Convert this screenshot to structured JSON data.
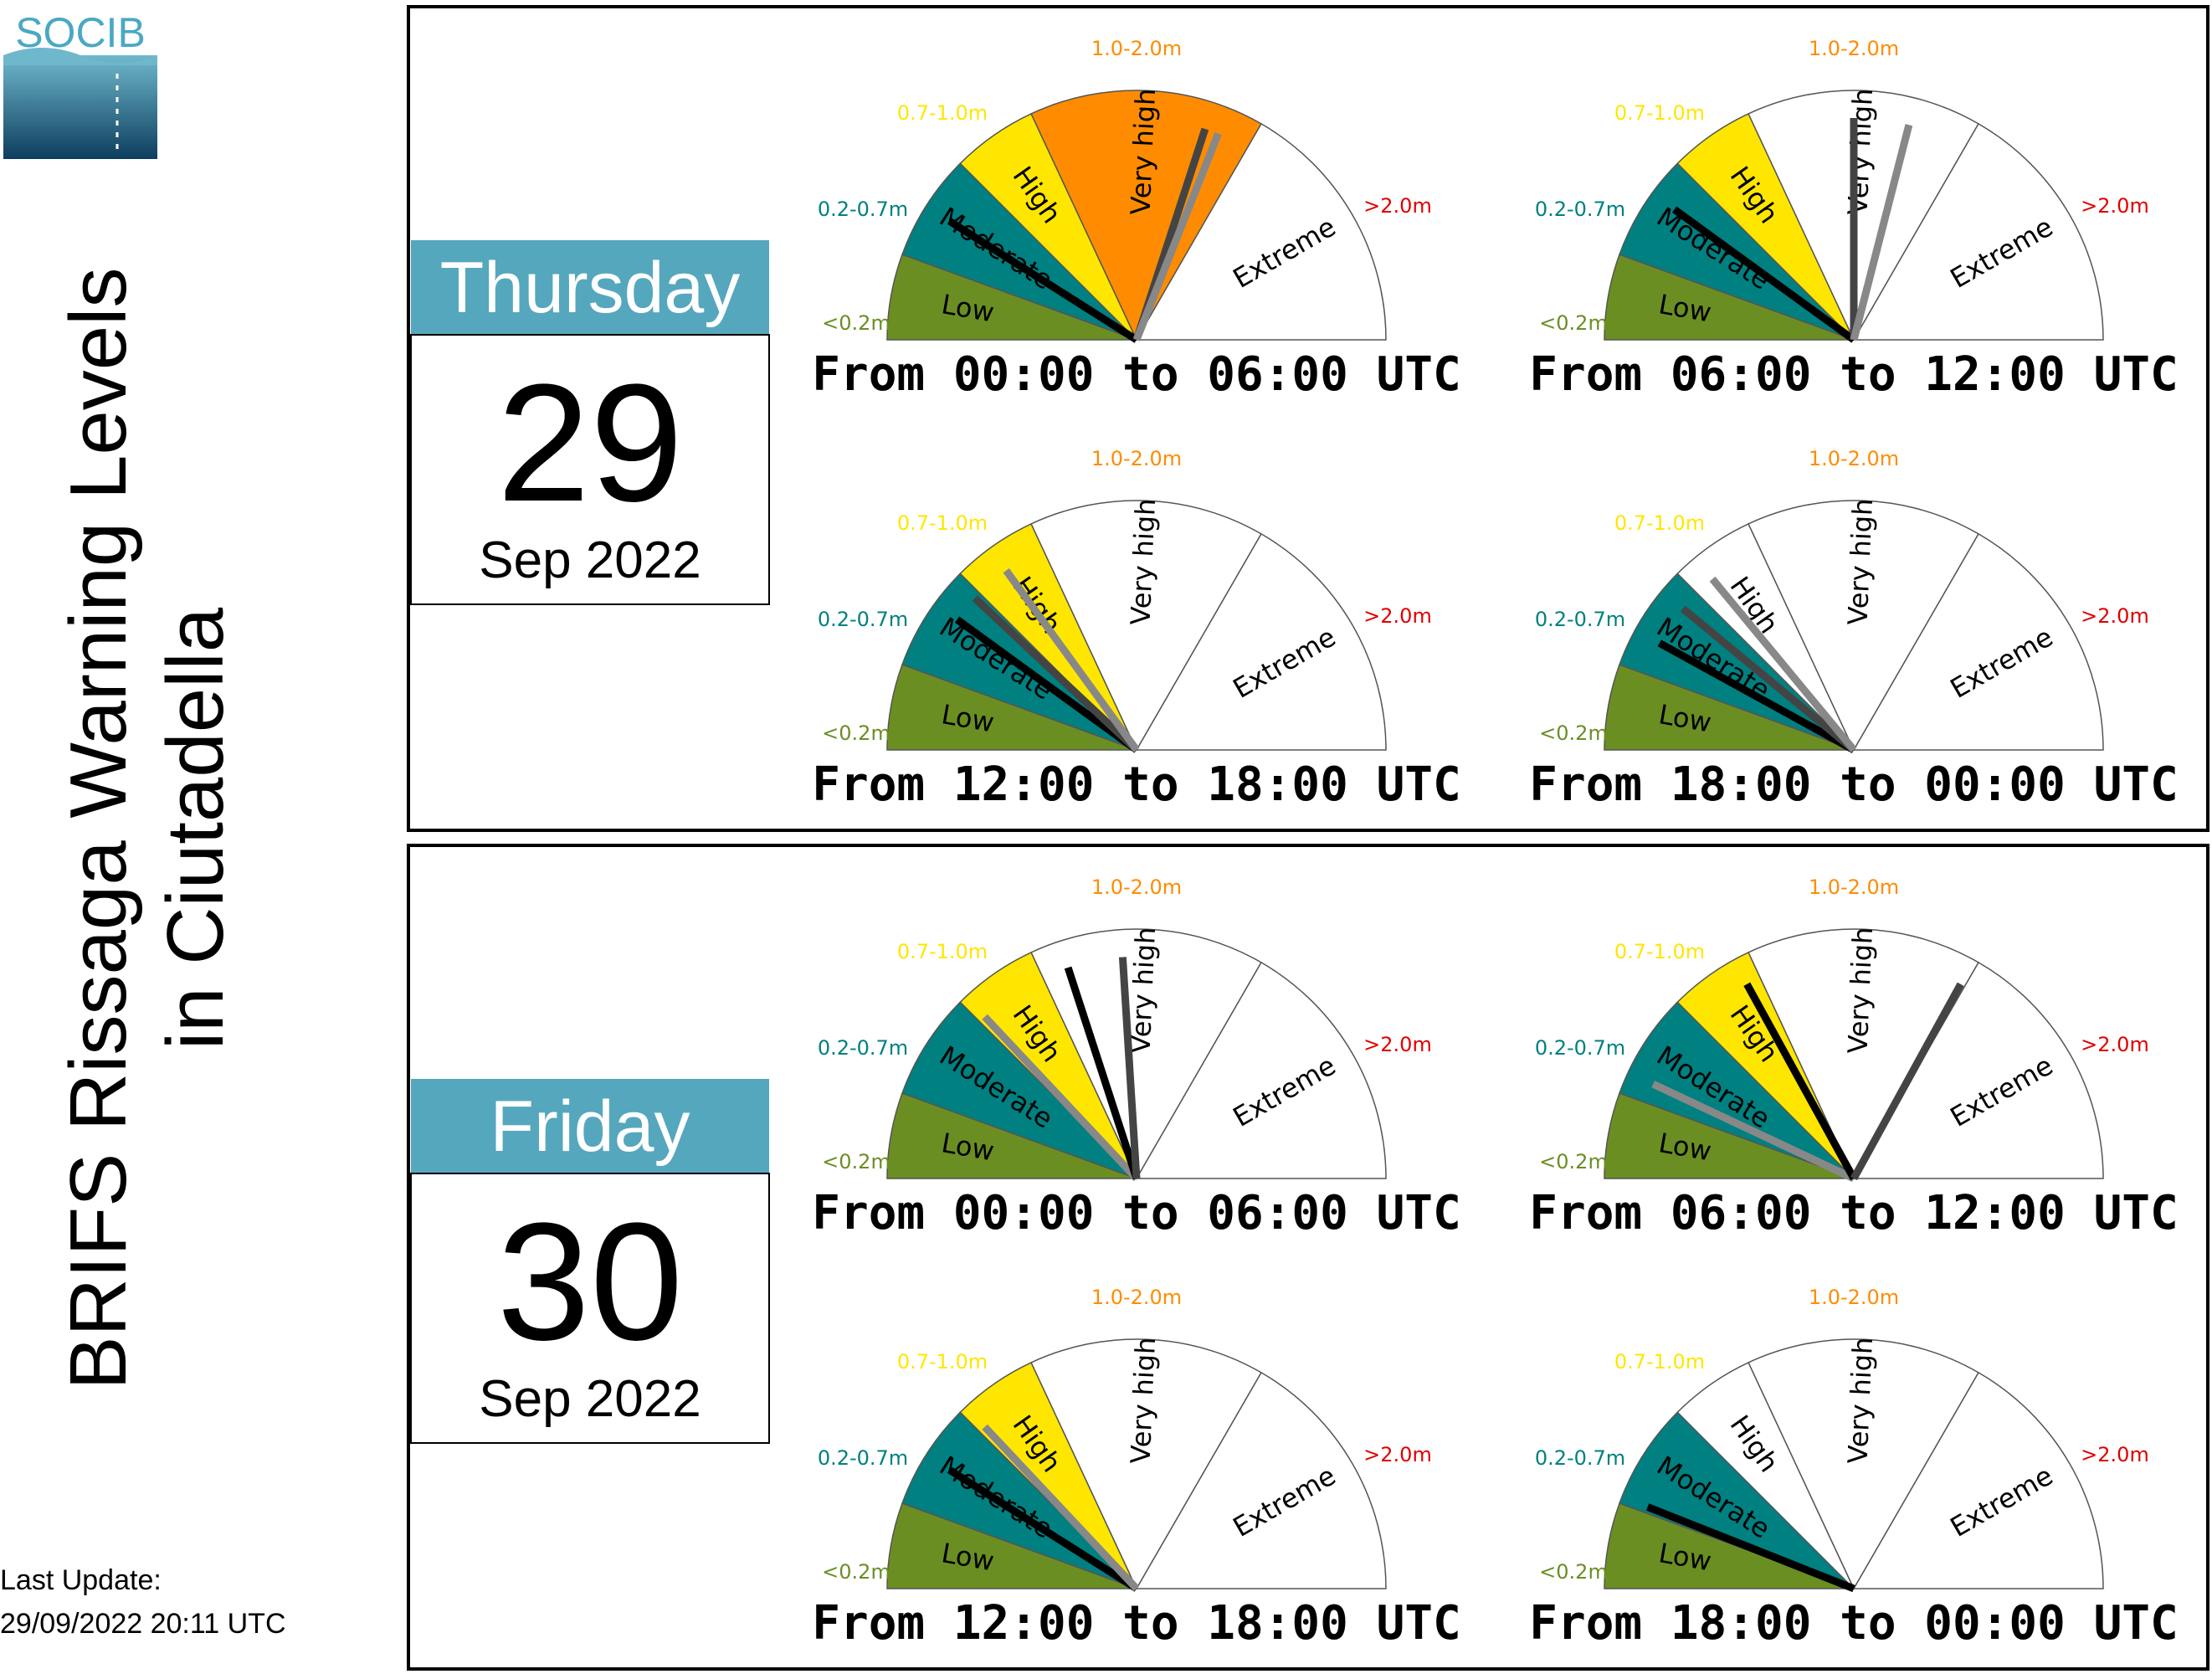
{
  "logo": {
    "text": "SOCIB"
  },
  "title": {
    "line1": "BRIFS Rissaga Warning Levels",
    "line2": "in Ciutadella"
  },
  "last_update": {
    "label": "Last Update:",
    "value": "29/09/2022 20:11 UTC"
  },
  "colors": {
    "low": "#6b8e23",
    "moderate": "#008080",
    "high": "#ffe600",
    "veryhigh": "#ff8c00",
    "extreme": "#e00000",
    "header": "#55a7bd",
    "needle_mean": "#000000",
    "needle_dark": "#444444",
    "needle_light": "#888888"
  },
  "chart_data": {
    "type": "gauge",
    "category_labels": [
      "Low",
      "Moderate",
      "High",
      "Very high",
      "Extreme"
    ],
    "threshold_labels": [
      "<0.2m",
      "0.2-0.7m",
      "0.7-1.0m",
      "1.0-2.0m",
      ">2.0m"
    ],
    "days": [
      {
        "weekday": "Thursday",
        "day": "29",
        "month_year": "Sep 2022",
        "periods": [
          {
            "label": "From 00:00 to 06:00 UTC",
            "fill_level": 3,
            "needles": [
              {
                "value": 0.18,
                "tone": "mean"
              },
              {
                "value": 0.6,
                "tone": "dark"
              },
              {
                "value": 0.62,
                "tone": "light"
              }
            ]
          },
          {
            "label": "From 06:00 to 12:00 UTC",
            "fill_level": 2,
            "needles": [
              {
                "value": 0.2,
                "tone": "mean"
              },
              {
                "value": 0.5,
                "tone": "dark"
              },
              {
                "value": 0.58,
                "tone": "light"
              }
            ]
          },
          {
            "label": "From 12:00 to 18:00 UTC",
            "fill_level": 2,
            "needles": [
              {
                "value": 0.2,
                "tone": "mean"
              },
              {
                "value": 0.24,
                "tone": "dark"
              },
              {
                "value": 0.3,
                "tone": "light"
              }
            ]
          },
          {
            "label": "From 18:00 to 00:00 UTC",
            "fill_level": 1,
            "needles": [
              {
                "value": 0.16,
                "tone": "mean"
              },
              {
                "value": 0.22,
                "tone": "dark"
              },
              {
                "value": 0.28,
                "tone": "light"
              }
            ]
          }
        ]
      },
      {
        "weekday": "Friday",
        "day": "30",
        "month_year": "Sep 2022",
        "periods": [
          {
            "label": "From 00:00 to 06:00 UTC",
            "fill_level": 2,
            "needles": [
              {
                "value": 0.26,
                "tone": "light"
              },
              {
                "value": 0.4,
                "tone": "mean"
              },
              {
                "value": 0.48,
                "tone": "dark"
              }
            ]
          },
          {
            "label": "From 06:00 to 12:00 UTC",
            "fill_level": 2,
            "needles": [
              {
                "value": 0.14,
                "tone": "light"
              },
              {
                "value": 0.34,
                "tone": "mean"
              },
              {
                "value": 0.66,
                "tone": "dark"
              }
            ]
          },
          {
            "label": "From 12:00 to 18:00 UTC",
            "fill_level": 2,
            "needles": [
              {
                "value": 0.18,
                "tone": "mean"
              },
              {
                "value": 0.26,
                "tone": "light"
              }
            ]
          },
          {
            "label": "From 18:00 to 00:00 UTC",
            "fill_level": 1,
            "needles": [
              {
                "value": 0.12,
                "tone": "mean"
              }
            ]
          }
        ]
      }
    ]
  }
}
